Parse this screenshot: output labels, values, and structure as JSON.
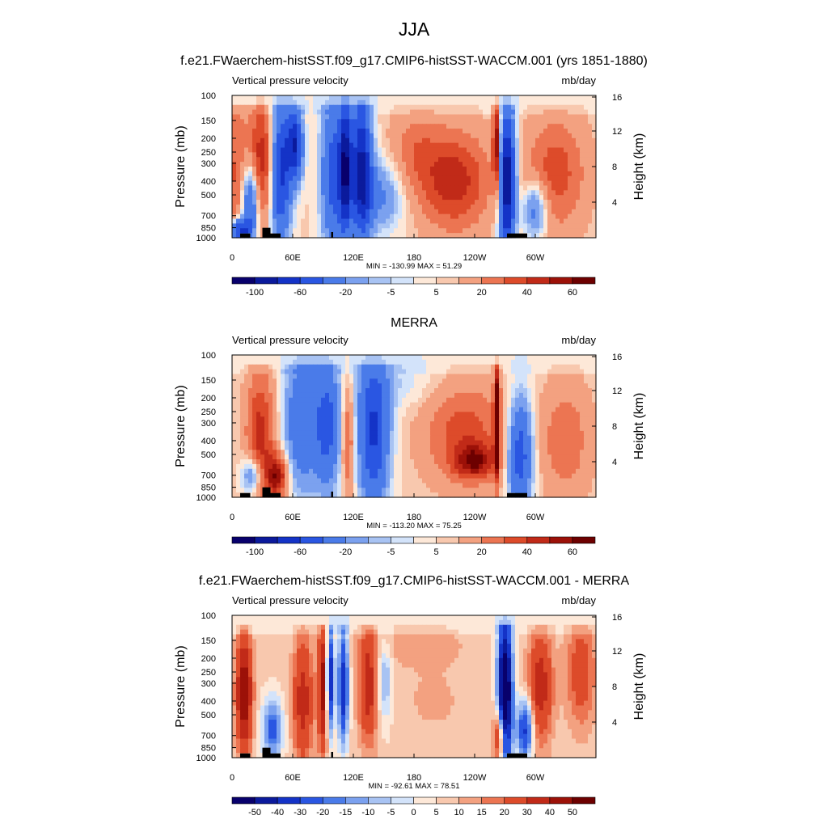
{
  "figure": {
    "title": "JJA"
  },
  "palettes": {
    "main": [
      "#08006c",
      "#0b1a9c",
      "#1433c7",
      "#2a56e2",
      "#4a7be9",
      "#7ba1ef",
      "#a8c3f3",
      "#d3e3fa",
      "#fde8d8",
      "#f8c8ae",
      "#f3a180",
      "#ec7552",
      "#dd4b2a",
      "#c12a18",
      "#9c1108",
      "#6d0000"
    ],
    "diff": [
      "#08006c",
      "#0b1a9c",
      "#1433c7",
      "#2a56e2",
      "#4a7be9",
      "#7ba1ef",
      "#a8c3f3",
      "#d3e3fa",
      "#fde8d8",
      "#f8c8ae",
      "#f3a180",
      "#ec7552",
      "#dd4b2a",
      "#c12a18",
      "#9c1108",
      "#6d0000"
    ]
  },
  "chart_data": [
    {
      "type": "heatmap",
      "title": "f.e21.FWaerchem-histSST.f09_g17.CMIP6-histSST-WACCM.001 (yrs 1851-1880)",
      "left_label": "Vertical pressure velocity",
      "right_label": "mb/day",
      "ylabel": "Pressure (mb)",
      "ylabel_right": "Height (km)",
      "x_ticks": [
        "0",
        "60E",
        "120E",
        "180",
        "120W",
        "60W"
      ],
      "x_tick_values": [
        0,
        60,
        120,
        180,
        240,
        300
      ],
      "xlim": [
        0,
        360
      ],
      "y_ticks": [
        "100",
        "150",
        "200",
        "250",
        "300",
        "400",
        "500",
        "700",
        "850",
        "1000"
      ],
      "y_tick_values": [
        100,
        150,
        200,
        250,
        300,
        400,
        500,
        700,
        850,
        1000
      ],
      "ylim": [
        1000,
        100
      ],
      "y_scale": "log",
      "height_ticks": [
        "4",
        "8",
        "12",
        "16"
      ],
      "height_tick_values": [
        4,
        8,
        12,
        16
      ],
      "stats": "MIN = -130.99  MAX =  51.29",
      "min": -130.99,
      "max": 51.29,
      "colorbar_labels": [
        "-100",
        "-60",
        "-20",
        "-5",
        "5",
        "20",
        "40",
        "60"
      ],
      "colorbar_label_positions": [
        1,
        3,
        5,
        7,
        9,
        11,
        13,
        15
      ],
      "palette": "main"
    },
    {
      "type": "heatmap",
      "title": "MERRA",
      "left_label": "Vertical pressure velocity",
      "right_label": "mb/day",
      "ylabel": "Pressure (mb)",
      "ylabel_right": "Height (km)",
      "x_ticks": [
        "0",
        "60E",
        "120E",
        "180",
        "120W",
        "60W"
      ],
      "x_tick_values": [
        0,
        60,
        120,
        180,
        240,
        300
      ],
      "xlim": [
        0,
        360
      ],
      "y_ticks": [
        "100",
        "150",
        "200",
        "250",
        "300",
        "400",
        "500",
        "700",
        "850",
        "1000"
      ],
      "y_tick_values": [
        100,
        150,
        200,
        250,
        300,
        400,
        500,
        700,
        850,
        1000
      ],
      "ylim": [
        1000,
        100
      ],
      "y_scale": "log",
      "height_ticks": [
        "4",
        "8",
        "12",
        "16"
      ],
      "height_tick_values": [
        4,
        8,
        12,
        16
      ],
      "stats": "MIN = -113.20  MAX =  75.25",
      "min": -113.2,
      "max": 75.25,
      "colorbar_labels": [
        "-100",
        "-60",
        "-20",
        "-5",
        "5",
        "20",
        "40",
        "60"
      ],
      "colorbar_label_positions": [
        1,
        3,
        5,
        7,
        9,
        11,
        13,
        15
      ],
      "palette": "main"
    },
    {
      "type": "heatmap",
      "title": "f.e21.FWaerchem-histSST.f09_g17.CMIP6-histSST-WACCM.001 - MERRA",
      "left_label": "Vertical pressure velocity",
      "right_label": "mb/day",
      "ylabel": "Pressure (mb)",
      "ylabel_right": "Height (km)",
      "x_ticks": [
        "0",
        "60E",
        "120E",
        "180",
        "120W",
        "60W"
      ],
      "x_tick_values": [
        0,
        60,
        120,
        180,
        240,
        300
      ],
      "xlim": [
        0,
        360
      ],
      "y_ticks": [
        "100",
        "150",
        "200",
        "250",
        "300",
        "400",
        "500",
        "700",
        "850",
        "1000"
      ],
      "y_tick_values": [
        100,
        150,
        200,
        250,
        300,
        400,
        500,
        700,
        850,
        1000
      ],
      "ylim": [
        1000,
        100
      ],
      "y_scale": "log",
      "height_ticks": [
        "4",
        "8",
        "12",
        "16"
      ],
      "height_tick_values": [
        4,
        8,
        12,
        16
      ],
      "stats": "MIN = -92.61  MAX = 78.51",
      "min": -92.61,
      "max": 78.51,
      "colorbar_labels": [
        "-50",
        "-40",
        "-30",
        "-20",
        "-15",
        "-10",
        "-5",
        "0",
        "5",
        "10",
        "15",
        "20",
        "30",
        "40",
        "50"
      ],
      "colorbar_label_positions": [
        1,
        2,
        3,
        4,
        5,
        6,
        7,
        8,
        9,
        10,
        11,
        12,
        13,
        14,
        15
      ],
      "palette": "diff"
    }
  ]
}
